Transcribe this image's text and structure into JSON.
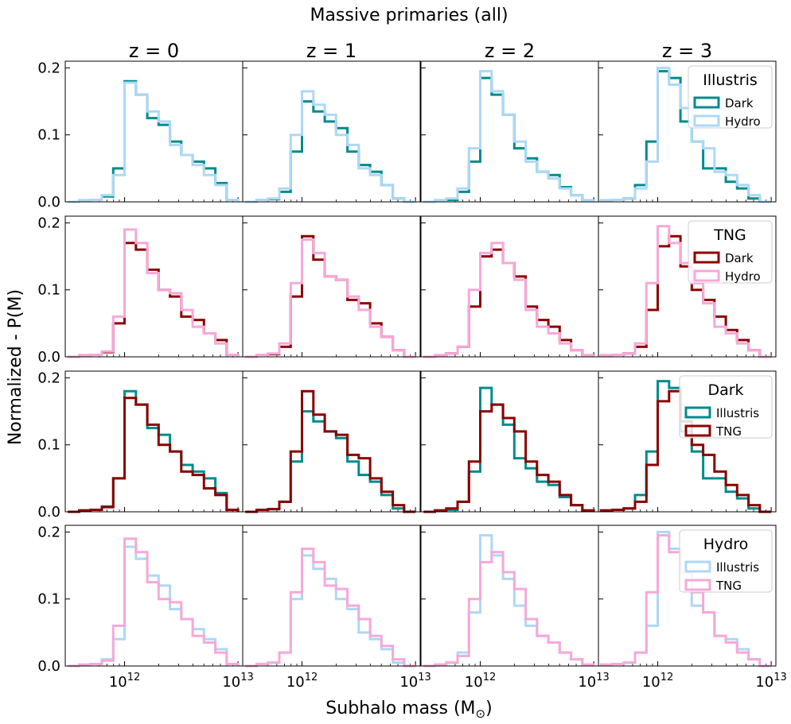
{
  "figure": {
    "suptitle": "Massive primaries (all)",
    "xlabel": "Subhalo mass (M",
    "xlabel_sub": "⊙",
    "xlabel_close": ")",
    "ylabel": "Normalized - P(M)"
  },
  "colors": {
    "illustris_dark": "#008B8B",
    "illustris_hydro": "#ADD8F5",
    "tng_dark": "#8B0000",
    "tng_hydro": "#F7A8D8"
  },
  "chart_data": {
    "type": "histogram-step",
    "layout": "4 rows x 4 columns",
    "column_titles": [
      "z = 0",
      "z = 1",
      "z = 2",
      "z = 3"
    ],
    "x_scale": "log",
    "xlim": [
      300000000000.0,
      11000000000000.0
    ],
    "ylim": [
      0,
      0.21
    ],
    "yticks": [
      0.0,
      0.1,
      0.2
    ],
    "ytick_labels": [
      "0.0",
      "0.1",
      "0.2"
    ],
    "xtick_labels": [
      {
        "base": "10",
        "exp": "12"
      },
      {
        "base": "10",
        "exp": "13"
      }
    ],
    "bin_edges_log10": [
      11.5,
      11.6,
      11.7,
      11.8,
      11.9,
      12.0,
      12.1,
      12.2,
      12.3,
      12.4,
      12.5,
      12.6,
      12.7,
      12.8,
      12.9,
      13.0
    ],
    "profiles": {
      "IllustrisDark": [
        [
          0,
          0.002,
          0.003,
          0.008,
          0.05,
          0.18,
          0.16,
          0.125,
          0.115,
          0.09,
          0.07,
          0.06,
          0.05,
          0.028,
          0.003
        ],
        [
          0,
          0.003,
          0.004,
          0.015,
          0.075,
          0.15,
          0.135,
          0.12,
          0.11,
          0.075,
          0.055,
          0.045,
          0.025,
          0.005,
          0
        ],
        [
          0,
          0.002,
          0.003,
          0.015,
          0.06,
          0.185,
          0.16,
          0.13,
          0.08,
          0.065,
          0.045,
          0.04,
          0.022,
          0.01,
          0.002
        ],
        [
          0.002,
          0.003,
          0.005,
          0.025,
          0.09,
          0.195,
          0.185,
          0.12,
          0.09,
          0.05,
          0.05,
          0.03,
          0.02,
          0.005,
          0
        ]
      ],
      "IllustrisHydro": [
        [
          0,
          0.002,
          0.003,
          0.01,
          0.04,
          0.178,
          0.16,
          0.135,
          0.12,
          0.085,
          0.07,
          0.055,
          0.04,
          0.025,
          0.003
        ],
        [
          0,
          0.003,
          0.005,
          0.02,
          0.1,
          0.165,
          0.145,
          0.13,
          0.1,
          0.085,
          0.05,
          0.04,
          0.025,
          0.005,
          0
        ],
        [
          0,
          0.002,
          0.005,
          0.02,
          0.08,
          0.195,
          0.165,
          0.13,
          0.09,
          0.06,
          0.045,
          0.035,
          0.02,
          0.01,
          0.002
        ],
        [
          0.002,
          0.003,
          0.005,
          0.02,
          0.06,
          0.2,
          0.175,
          0.14,
          0.09,
          0.08,
          0.045,
          0.04,
          0.025,
          0.01,
          0
        ]
      ],
      "TNGDark": [
        [
          0,
          0.002,
          0.003,
          0.007,
          0.05,
          0.17,
          0.16,
          0.13,
          0.1,
          0.09,
          0.06,
          0.055,
          0.035,
          0.025,
          0.003
        ],
        [
          0,
          0.003,
          0.004,
          0.015,
          0.09,
          0.18,
          0.145,
          0.12,
          0.115,
          0.085,
          0.08,
          0.05,
          0.03,
          0.01,
          0
        ],
        [
          0,
          0.002,
          0.005,
          0.015,
          0.075,
          0.15,
          0.16,
          0.14,
          0.12,
          0.075,
          0.055,
          0.045,
          0.025,
          0.01,
          0.002
        ],
        [
          0.002,
          0.003,
          0.005,
          0.015,
          0.07,
          0.165,
          0.18,
          0.135,
          0.1,
          0.085,
          0.06,
          0.04,
          0.025,
          0.01,
          0
        ]
      ],
      "TNGHydro": [
        [
          0,
          0.002,
          0.003,
          0.008,
          0.06,
          0.19,
          0.17,
          0.125,
          0.1,
          0.095,
          0.07,
          0.045,
          0.035,
          0.02,
          0.003
        ],
        [
          0,
          0.003,
          0.005,
          0.02,
          0.11,
          0.175,
          0.155,
          0.12,
          0.115,
          0.09,
          0.07,
          0.045,
          0.03,
          0.01,
          0
        ],
        [
          0,
          0.002,
          0.005,
          0.015,
          0.1,
          0.155,
          0.17,
          0.14,
          0.115,
          0.07,
          0.045,
          0.035,
          0.02,
          0.01,
          0.002
        ],
        [
          0.002,
          0.003,
          0.005,
          0.02,
          0.11,
          0.195,
          0.17,
          0.14,
          0.11,
          0.08,
          0.045,
          0.035,
          0.02,
          0.01,
          0
        ]
      ]
    },
    "rows": [
      {
        "legend_title": "Illustris",
        "series": [
          {
            "name": "Dark",
            "profile": "IllustrisDark",
            "color": "#008B8B"
          },
          {
            "name": "Hydro",
            "profile": "IllustrisHydro",
            "color": "#ADD8F5"
          }
        ]
      },
      {
        "legend_title": "TNG",
        "series": [
          {
            "name": "Dark",
            "profile": "TNGDark",
            "color": "#8B0000"
          },
          {
            "name": "Hydro",
            "profile": "TNGHydro",
            "color": "#F7A8D8"
          }
        ]
      },
      {
        "legend_title": "Dark",
        "series": [
          {
            "name": "Illustris",
            "profile": "IllustrisDark",
            "color": "#008B8B"
          },
          {
            "name": "TNG",
            "profile": "TNGDark",
            "color": "#8B0000"
          }
        ]
      },
      {
        "legend_title": "Hydro",
        "series": [
          {
            "name": "Illustris",
            "profile": "IllustrisHydro",
            "color": "#ADD8F5"
          },
          {
            "name": "TNG",
            "profile": "TNGHydro",
            "color": "#F7A8D8"
          }
        ]
      }
    ],
    "legend_placement": "upper-right of last column in each row",
    "grid": false
  }
}
